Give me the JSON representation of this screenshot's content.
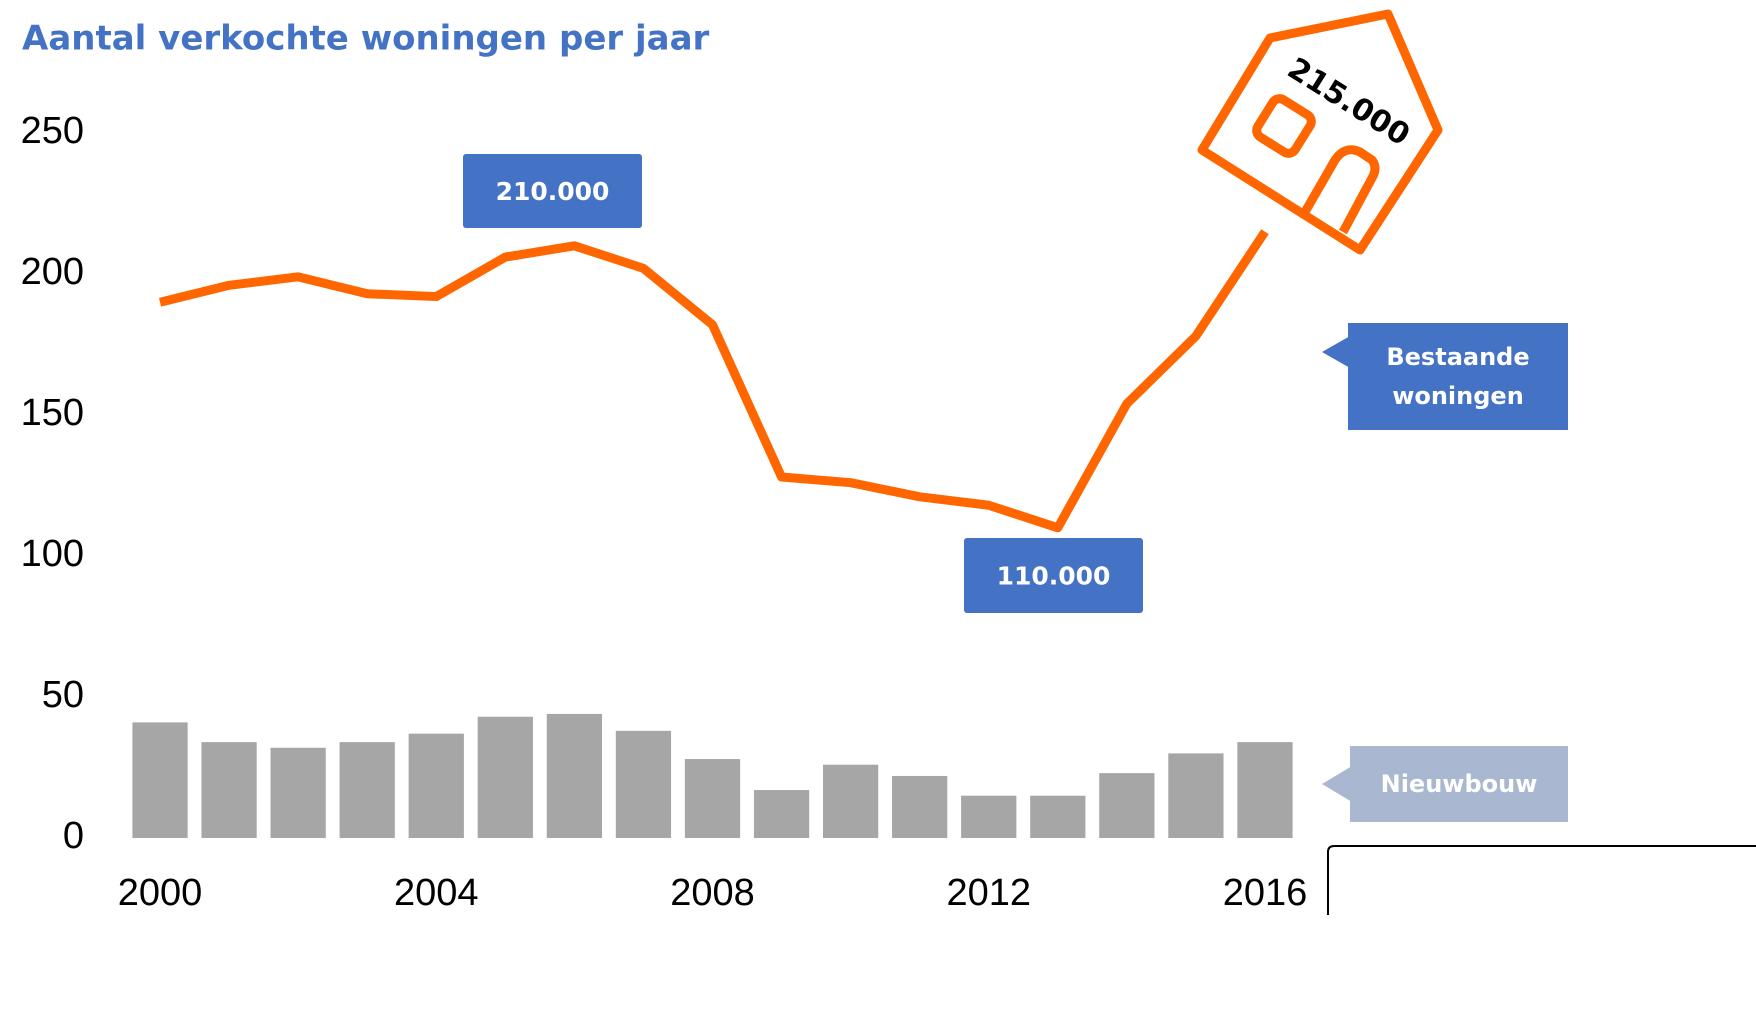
{
  "chart_data": {
    "type": "combo",
    "title": "Aantal verkochte woningen per jaar",
    "x": [
      2000,
      2001,
      2002,
      2003,
      2004,
      2005,
      2006,
      2007,
      2008,
      2009,
      2010,
      2011,
      2012,
      2013,
      2014,
      2015,
      2016
    ],
    "xlim": [
      1999.5,
      2016.5
    ],
    "xticks": [
      2000,
      2004,
      2008,
      2012,
      2016
    ],
    "ylim": [
      0,
      250
    ],
    "yticks": [
      0,
      50,
      100,
      150,
      200,
      250
    ],
    "grid": false,
    "series": [
      {
        "name": "Bestaande woningen",
        "type": "line",
        "color": "#ff6600",
        "values": [
          190,
          196,
          199,
          193,
          192,
          206,
          210,
          202,
          182,
          128,
          126,
          121,
          118,
          110,
          154,
          178,
          215
        ]
      },
      {
        "name": "Nieuwbouw",
        "type": "bar",
        "color": "#a6a6a6",
        "values": [
          41,
          34,
          32,
          34,
          37,
          43,
          44,
          38,
          28,
          17,
          26,
          22,
          15,
          15,
          23,
          30,
          34
        ]
      }
    ],
    "annotations": [
      "210.000",
      "110.000",
      "215.000"
    ]
  }
}
